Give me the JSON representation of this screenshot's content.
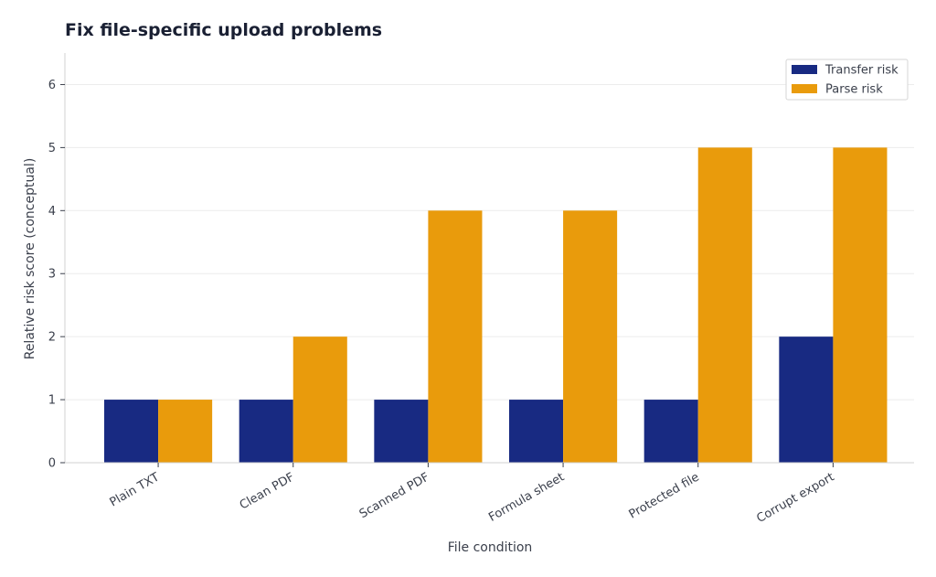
{
  "chart_data": {
    "type": "bar",
    "title": "Fix file-specific upload problems",
    "xlabel": "File condition",
    "ylabel": "Relative risk score (conceptual)",
    "categories": [
      "Plain TXT",
      "Clean PDF",
      "Scanned PDF",
      "Formula sheet",
      "Protected file",
      "Corrupt export"
    ],
    "series": [
      {
        "name": "Transfer risk",
        "color": "#182a82",
        "values": [
          1,
          1,
          1,
          1,
          1,
          2
        ]
      },
      {
        "name": "Parse risk",
        "color": "#e99b0c",
        "values": [
          1,
          2,
          4,
          4,
          5,
          5
        ]
      }
    ],
    "ylim": [
      0,
      6.5
    ],
    "yticks": [
      0,
      1,
      2,
      3,
      4,
      5,
      6
    ],
    "grid": true,
    "legend_position": "top-right"
  }
}
